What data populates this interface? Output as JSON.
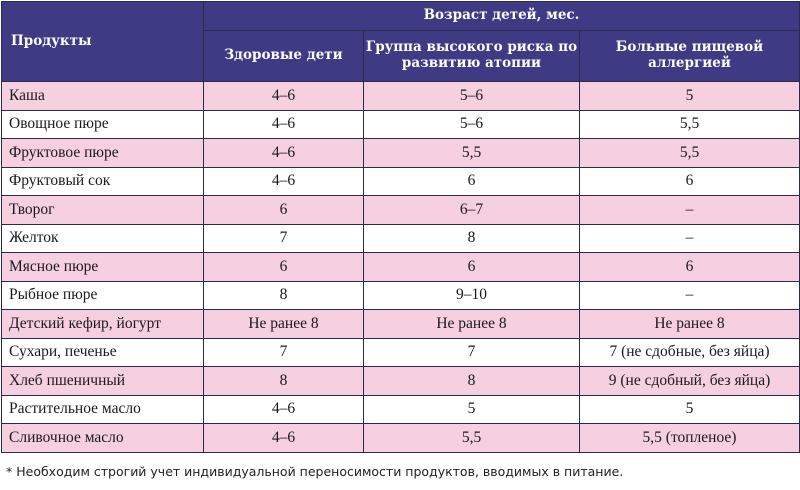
{
  "table": {
    "header": {
      "products": "Продукты",
      "age_group": "Возраст детей, мес.",
      "col_healthy": "Здоровые дети",
      "col_risk": "Группа высокого риска по развитию атопии",
      "col_allergy": "Больные пищевой аллергией"
    },
    "rows": [
      {
        "name": "Каша",
        "healthy": "4–6",
        "risk": "5–6",
        "allergy": "5"
      },
      {
        "name": "Овощное пюре",
        "healthy": "4–6",
        "risk": "5–6",
        "allergy": "5,5"
      },
      {
        "name": "Фруктовое пюре",
        "healthy": "4–6",
        "risk": "5,5",
        "allergy": "5,5"
      },
      {
        "name": "Фруктовый сок",
        "healthy": "4–6",
        "risk": "6",
        "allergy": "6"
      },
      {
        "name": "Творог",
        "healthy": "6",
        "risk": "6–7",
        "allergy": "–"
      },
      {
        "name": "Желток",
        "healthy": "7",
        "risk": "8",
        "allergy": "–"
      },
      {
        "name": "Мясное пюре",
        "healthy": "6",
        "risk": "6",
        "allergy": "6"
      },
      {
        "name": "Рыбное пюре",
        "healthy": "8",
        "risk": "9–10",
        "allergy": "–"
      },
      {
        "name": "Детский кефир, йогурт",
        "healthy": "Не ранее 8",
        "risk": "Не ранее 8",
        "allergy": "Не ранее 8"
      },
      {
        "name": "Сухари, печенье",
        "healthy": "7",
        "risk": "7",
        "allergy": "7 (не сдобные, без яйца)"
      },
      {
        "name": "Хлеб пшеничный",
        "healthy": "8",
        "risk": "8",
        "allergy": "9 (не сдобный, без яйца)"
      },
      {
        "name": "Растительное масло",
        "healthy": "4–6",
        "risk": "5",
        "allergy": "5"
      },
      {
        "name": "Сливочное масло",
        "healthy": "4–6",
        "risk": "5,5",
        "allergy": "5,5 (топленое)"
      }
    ]
  },
  "footnote": "* Необходим строгий учет индивидуальной переносимости продуктов, вводимых в питание.",
  "colors": {
    "header_bg": "#3f3a84",
    "row_pink": "#f6cfe0",
    "row_white": "#ffffff"
  }
}
